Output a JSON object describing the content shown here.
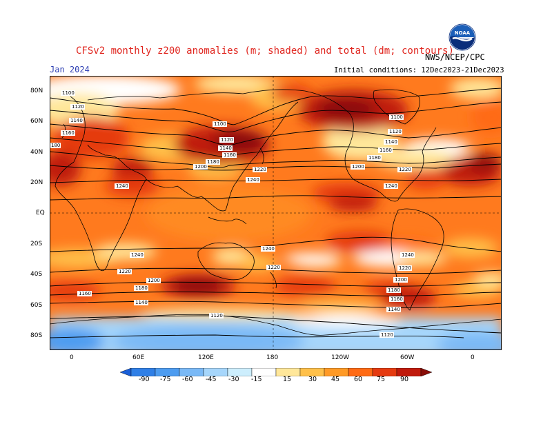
{
  "header": {
    "title": "CFSv2 monthly z200 anomalies (m; shaded) and total (dm; contours)",
    "valid_month": "Jan 2024",
    "agency": "NWS/NCEP/CPC",
    "initial_conditions": "Initial conditions: 12Dec2023-21Dec2023",
    "logo_text": "NOAA"
  },
  "axes": {
    "lat_labels": [
      "80N",
      "60N",
      "40N",
      "20N",
      "EQ",
      "20S",
      "40S",
      "60S",
      "80S"
    ],
    "lon_labels": [
      "0",
      "60E",
      "120E",
      "180",
      "120W",
      "60W",
      "0"
    ]
  },
  "colorbar": {
    "ticks": [
      "-90",
      "-75",
      "-60",
      "-45",
      "-30",
      "-15",
      "15",
      "30",
      "45",
      "60",
      "75",
      "90"
    ],
    "colors": [
      "#1a5fd8",
      "#2f7fe6",
      "#4d9cf0",
      "#7ab9f6",
      "#a6d6fb",
      "#cdeefd",
      "#ffffff",
      "#ffe79a",
      "#ffc04a",
      "#ff9a26",
      "#ff6a14",
      "#e53a10",
      "#c01a0c",
      "#8a0e08"
    ]
  },
  "contour_labels": [
    "1100",
    "1120",
    "1140",
    "1160",
    "180",
    "1100",
    "1120",
    "1140",
    "1160",
    "1180",
    "1200",
    "1220",
    "1240",
    "1100",
    "1120",
    "1140",
    "1160",
    "1180",
    "1200",
    "1220",
    "1240",
    "1240",
    "1240",
    "1240",
    "1220",
    "1220",
    "1200",
    "1180",
    "1160",
    "1140",
    "1120",
    "1240",
    "1220",
    "1200",
    "1180",
    "1160",
    "1140",
    "1120"
  ]
}
